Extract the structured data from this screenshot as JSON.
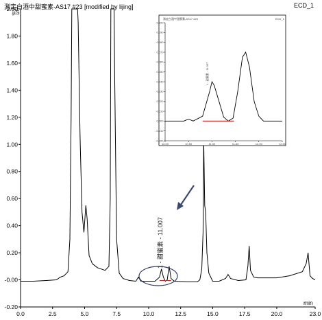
{
  "header": {
    "title": "測定白酒中甜蜜素-AS17 #23 [modified by lijing]",
    "channel": "ECD_1"
  },
  "chart_data": {
    "type": "line",
    "xlim": [
      0.0,
      23.0
    ],
    "ylim": [
      -0.2,
      2.0
    ],
    "x_unit": "min",
    "y_unit": "µS",
    "x_ticks": [
      "0.0",
      "2.5",
      "5.0",
      "7.5",
      "10.0",
      "12.5",
      "15.0",
      "17.5",
      "20.0",
      "23.0"
    ],
    "y_ticks": [
      "-0.20",
      "-0.00",
      "0.20",
      "0.40",
      "0.60",
      "0.80",
      "1.00",
      "1.20",
      "1.40",
      "1.60",
      "1.80",
      "2.00"
    ],
    "series": [
      {
        "points": [
          [
            0.0,
            -0.01
          ],
          [
            1.0,
            -0.01
          ],
          [
            2.0,
            -0.005
          ],
          [
            2.8,
            0.0
          ],
          [
            3.1,
            0.02
          ],
          [
            3.4,
            0.03
          ],
          [
            3.7,
            0.06
          ],
          [
            3.85,
            0.3
          ],
          [
            3.95,
            1.2
          ],
          [
            4.0,
            2.0
          ],
          [
            4.45,
            2.0
          ],
          [
            4.5,
            1.9
          ],
          [
            4.65,
            1.05
          ],
          [
            4.8,
            0.5
          ],
          [
            4.95,
            0.35
          ],
          [
            5.1,
            0.55
          ],
          [
            5.2,
            0.45
          ],
          [
            5.35,
            0.18
          ],
          [
            5.6,
            0.12
          ],
          [
            6.0,
            0.09
          ],
          [
            6.6,
            0.07
          ],
          [
            6.9,
            0.1
          ],
          [
            7.0,
            0.6
          ],
          [
            7.05,
            2.0
          ],
          [
            7.3,
            2.0
          ],
          [
            7.35,
            1.5
          ],
          [
            7.5,
            0.3
          ],
          [
            7.7,
            0.05
          ],
          [
            8.0,
            0.01
          ],
          [
            8.5,
            -0.005
          ],
          [
            9.0,
            -0.01
          ],
          [
            9.2,
            0.02
          ],
          [
            9.4,
            -0.01
          ],
          [
            10.0,
            -0.01
          ],
          [
            10.5,
            -0.01
          ],
          [
            10.85,
            0.02
          ],
          [
            11.0,
            0.08
          ],
          [
            11.15,
            0.02
          ],
          [
            11.3,
            -0.01
          ],
          [
            11.45,
            0.0
          ],
          [
            11.6,
            0.1
          ],
          [
            11.75,
            0.01
          ],
          [
            12.0,
            -0.01
          ],
          [
            13.0,
            -0.015
          ],
          [
            13.8,
            -0.015
          ],
          [
            14.0,
            0.0
          ],
          [
            14.15,
            0.08
          ],
          [
            14.25,
            0.35
          ],
          [
            14.3,
            1.05
          ],
          [
            14.38,
            0.55
          ],
          [
            14.45,
            0.5
          ],
          [
            14.55,
            0.2
          ],
          [
            14.7,
            0.05
          ],
          [
            15.0,
            -0.01
          ],
          [
            15.5,
            -0.01
          ],
          [
            16.0,
            0.01
          ],
          [
            16.2,
            0.04
          ],
          [
            16.4,
            0.01
          ],
          [
            17.0,
            -0.005
          ],
          [
            17.6,
            0.0
          ],
          [
            17.75,
            0.1
          ],
          [
            17.85,
            0.25
          ],
          [
            17.95,
            0.07
          ],
          [
            18.2,
            0.02
          ],
          [
            18.5,
            0.015
          ],
          [
            20.0,
            0.015
          ],
          [
            21.0,
            0.03
          ],
          [
            22.0,
            0.06
          ],
          [
            22.3,
            0.12
          ],
          [
            22.45,
            0.2
          ],
          [
            22.6,
            0.03
          ],
          [
            22.8,
            0.01
          ],
          [
            23.0,
            0.0
          ]
        ]
      }
    ],
    "annotations": [
      {
        "text": "1 - 甜蜜素 - 11.007",
        "x": 11.007
      }
    ],
    "inset": {
      "title": "測定白酒中甜蜜素-AS17 #23",
      "channel": "ECD_1",
      "xlim": [
        10.0,
        12.5
      ],
      "x_ticks": [
        "10.00",
        "10.50",
        "11.00",
        "11.50",
        "12.00",
        "12.50"
      ],
      "y_ticks": [
        "-0.020",
        "-0.010",
        "0.000",
        "0.010",
        "0.020",
        "0.030",
        "0.040",
        "0.050",
        "0.060",
        "0.070",
        "0.080",
        "0.090",
        "0.100"
      ],
      "annotation": "1 - 甜蜜素 - 11.007",
      "series": [
        {
          "points": [
            [
              10.0,
              0.0
            ],
            [
              10.4,
              0.0
            ],
            [
              10.5,
              0.002
            ],
            [
              10.6,
              0.0
            ],
            [
              10.8,
              0.005
            ],
            [
              10.95,
              0.03
            ],
            [
              11.0,
              0.04
            ],
            [
              11.05,
              0.036
            ],
            [
              11.15,
              0.02
            ],
            [
              11.25,
              0.004
            ],
            [
              11.35,
              0.0
            ],
            [
              11.45,
              0.003
            ],
            [
              11.55,
              0.03
            ],
            [
              11.65,
              0.065
            ],
            [
              11.72,
              0.07
            ],
            [
              11.8,
              0.055
            ],
            [
              11.9,
              0.02
            ],
            [
              12.0,
              0.005
            ],
            [
              12.1,
              0.0
            ],
            [
              12.5,
              0.0
            ]
          ]
        }
      ],
      "baseline": [
        10.8,
        11.47
      ]
    }
  }
}
